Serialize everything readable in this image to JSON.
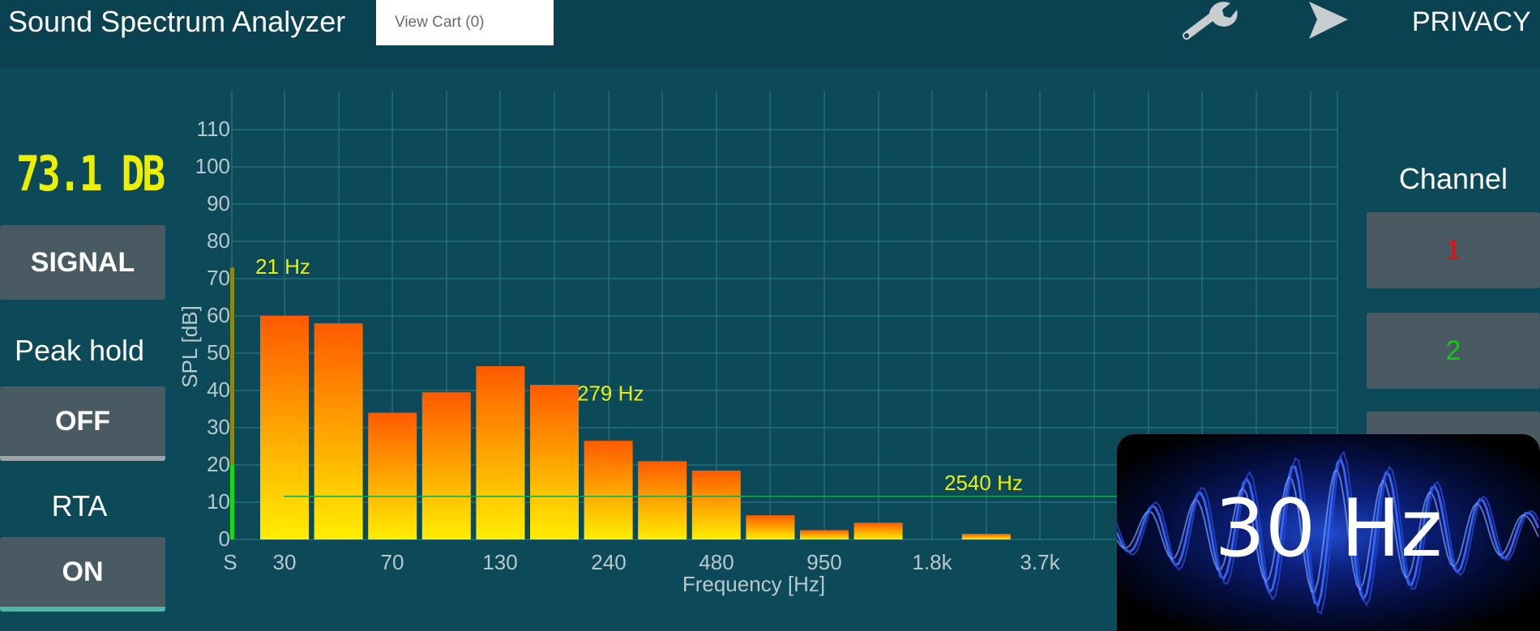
{
  "header": {
    "title": "Sound Spectrum Analyzer",
    "cart_label": "View Cart (0)",
    "privacy_label": "PRIVACY",
    "icons": [
      "wrench-icon",
      "send-icon"
    ]
  },
  "left_panel": {
    "level_readout": "73.1 DB",
    "signal_label": "SIGNAL",
    "peak_hold_label": "Peak hold",
    "peak_hold_value": "OFF",
    "rta_label": "RTA",
    "rta_value": "ON"
  },
  "right_panel": {
    "channel_label": "Channel",
    "channels": [
      "1",
      "2"
    ]
  },
  "overlay": {
    "text": "30 Hz"
  },
  "colors": {
    "accent_yellow": "#ecf000",
    "bar_top": "#ff5a00",
    "bar_bottom": "#ffee00",
    "channel1": "#e01010",
    "channel2": "#14c814"
  },
  "chart_data": {
    "type": "bar",
    "xlabel": "Frequency [Hz]",
    "ylabel": "SPL [dB]",
    "ylim": [
      0,
      110
    ],
    "yticks": [
      "0",
      "10",
      "20",
      "30",
      "40",
      "50",
      "60",
      "70",
      "80",
      "90",
      "100",
      "110"
    ],
    "xticks": [
      "S",
      "30",
      "70",
      "130",
      "240",
      "480",
      "950",
      "1.8k",
      "3.7k"
    ],
    "signal_level": 73,
    "values": [
      60,
      58,
      34,
      39.5,
      46.5,
      41.5,
      26.5,
      21,
      18.5,
      6.5,
      2.5,
      4.5,
      0,
      1.5
    ],
    "annotations": [
      {
        "text": "21 Hz",
        "y": 70
      },
      {
        "text": "279 Hz",
        "y": 36
      },
      {
        "text": "2540 Hz",
        "y": 12
      }
    ],
    "grid": true
  }
}
